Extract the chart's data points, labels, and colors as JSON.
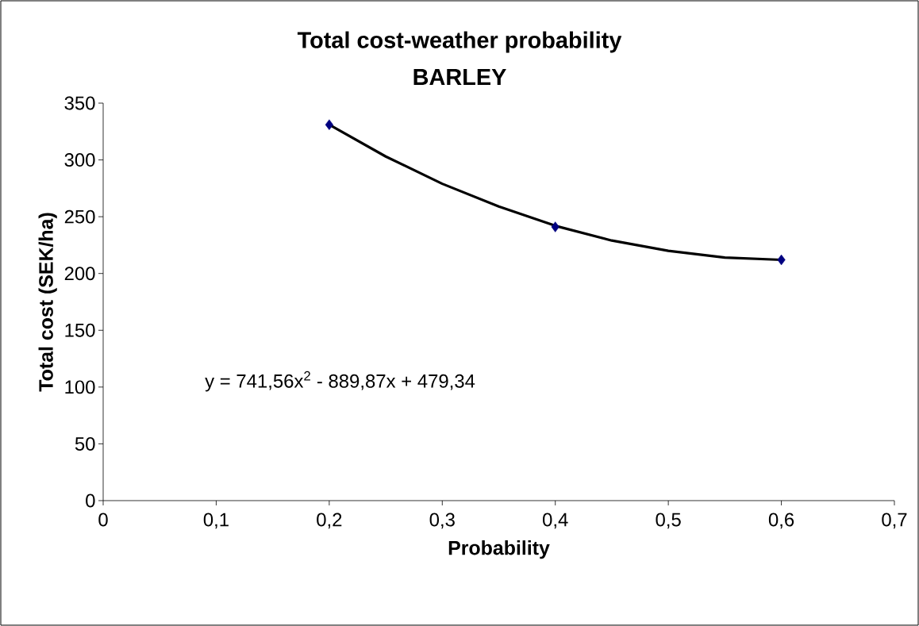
{
  "chart_data": {
    "type": "scatter",
    "title": "Total cost-weather probability",
    "subtitle": "BARLEY",
    "xlabel": "Probability",
    "ylabel": "Total cost (SEK/ha)",
    "annotations": [
      "y = 741,56x$^{2}$ - 889,87x + 479,34"
    ],
    "x": [
      0.2,
      0.4,
      0.6
    ],
    "series": [
      {
        "color": "#000080",
        "marker": "diamond",
        "values": [
          331,
          241,
          212
        ]
      },
      {
        "type": "line",
        "color": "#000000",
        "marker": "none",
        "x": [
          0.2,
          0.25,
          0.3,
          0.35,
          0.4,
          0.45,
          0.5,
          0.55,
          0.6
        ],
        "values": [
          331,
          303,
          279,
          259,
          242,
          229,
          220,
          214,
          212
        ]
      }
    ],
    "xlim": [
      0,
      0.7
    ],
    "ylim": [
      0,
      350
    ],
    "xticks": [
      0,
      {
        "value": 0.1,
        "label": "0,1"
      },
      {
        "value": 0.2,
        "label": "0,2"
      },
      {
        "value": 0.3,
        "label": "0,3"
      },
      {
        "value": 0.4,
        "label": "0,4"
      },
      {
        "value": 0.5,
        "label": "0,5"
      },
      {
        "value": 0.6,
        "label": "0,6"
      },
      {
        "value": 0.7,
        "label": "0,7"
      }
    ],
    "yticks": [
      0,
      50,
      100,
      150,
      200,
      250,
      300,
      350
    ]
  }
}
